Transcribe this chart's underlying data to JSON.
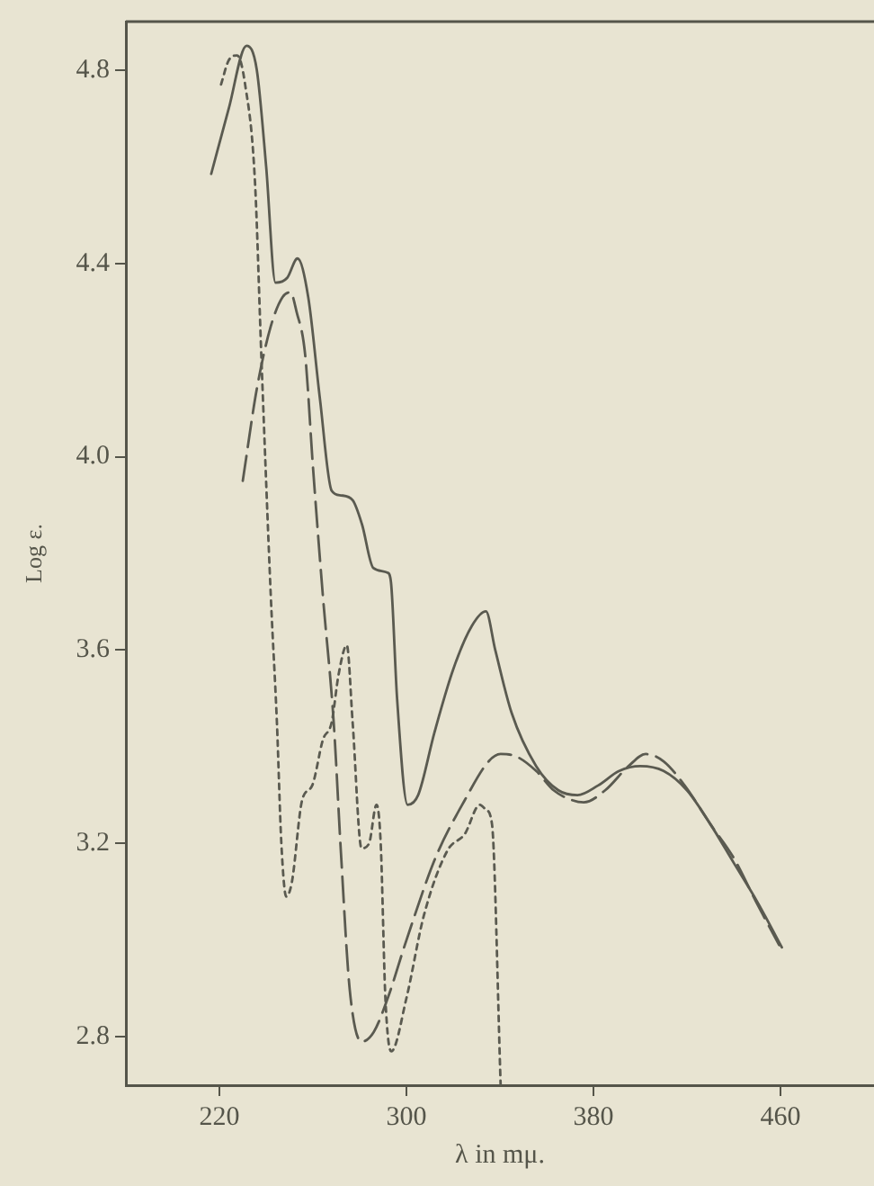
{
  "chart_data": {
    "type": "line",
    "xlabel": "λ in mμ.",
    "ylabel": "Log ε.",
    "xlim": [
      180,
      500
    ],
    "xticks": [
      220,
      300,
      380,
      460
    ],
    "ylim": [
      2.7,
      4.9
    ],
    "yticks": [
      2.8,
      3.2,
      3.6,
      {
        "value": 4,
        "label": "4.0"
      },
      4.4,
      4.8
    ],
    "grid": false,
    "legend": false,
    "marker": "none",
    "series": [
      {
        "color": "#5a5a50",
        "line_style": "solid",
        "x": [
          216.5,
          224,
          231.6,
          236,
          240,
          244,
          249,
          253.4,
          258,
          263,
          268,
          272,
          277,
          281,
          285.8,
          292,
          293.4,
          296,
          300.5,
          305,
          312,
          320,
          328,
          334,
          338,
          345,
          355.5,
          365,
          373.2,
          382,
          391,
          400,
          410,
          420,
          430,
          440,
          450,
          460.6
        ],
        "values": [
          4.585,
          4.72,
          4.85,
          4.8,
          4.6,
          4.36,
          4.37,
          4.41,
          4.33,
          4.12,
          3.93,
          3.92,
          3.91,
          3.86,
          3.77,
          3.76,
          3.74,
          3.5,
          3.28,
          3.3,
          3.43,
          3.56,
          3.65,
          3.68,
          3.6,
          3.47,
          3.36,
          3.31,
          3.3,
          3.32,
          3.35,
          3.36,
          3.35,
          3.31,
          3.24,
          3.16,
          3.08,
          2.985
        ]
      },
      {
        "color": "#5a5a50",
        "line_style": "dashed",
        "x": [
          230,
          236,
          242,
          247,
          250.4,
          253,
          256.7,
          260,
          264.3,
          268.9,
          272,
          275.7,
          280.8,
          286,
          292,
          300,
          312.4,
          325,
          335.2,
          340.3,
          347,
          355.5,
          363,
          370.7,
          375.8,
          385,
          395,
          402.4,
          410,
          419,
          430,
          440,
          449.5,
          459.4
        ],
        "values": [
          3.95,
          4.14,
          4.27,
          4.33,
          4.34,
          4.3,
          4.21,
          3.98,
          3.71,
          3.45,
          3.18,
          2.9,
          2.79,
          2.81,
          2.88,
          3.0,
          3.17,
          3.29,
          3.37,
          3.385,
          3.38,
          3.35,
          3.31,
          3.29,
          3.285,
          3.31,
          3.36,
          3.385,
          3.37,
          3.32,
          3.24,
          3.17,
          3.08,
          2.99
        ]
      },
      {
        "color": "#5a5a50",
        "line_style": "dotted",
        "x": [
          220.7,
          224,
          227.6,
          231,
          235.2,
          238,
          242,
          244.6,
          246.5,
          248.6,
          251,
          255.4,
          259.7,
          264.3,
          268,
          271,
          274.5,
          277,
          280.8,
          284,
          287.2,
          289,
          291,
          293.5,
          300,
          307.4,
          317.5,
          325,
          331.4,
          334,
          336.6,
          340.3
        ],
        "values": [
          4.77,
          4.82,
          4.83,
          4.77,
          4.57,
          4.2,
          3.71,
          3.45,
          3.2,
          3.09,
          3.12,
          3.29,
          3.32,
          3.415,
          3.45,
          3.55,
          3.61,
          3.45,
          3.19,
          3.2,
          3.28,
          3.2,
          2.88,
          2.77,
          2.88,
          3.05,
          3.185,
          3.22,
          3.28,
          3.27,
          3.24,
          2.7
        ]
      }
    ]
  }
}
